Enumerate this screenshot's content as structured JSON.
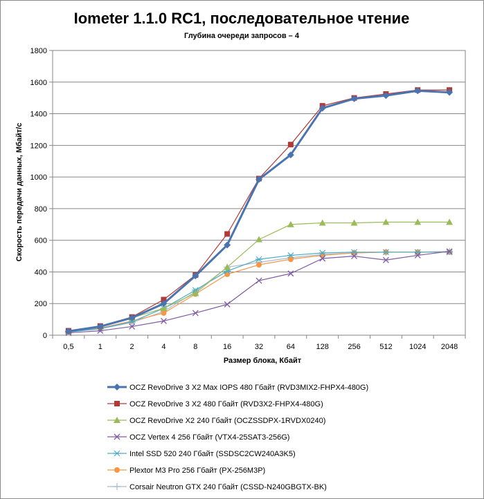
{
  "chart_data": {
    "type": "line",
    "title": "Iometer 1.1.0 RC1, последовательное чтение",
    "subtitle": "Глубина очереди запросов – 4",
    "xlabel": "Размер блока, Кбайт",
    "ylabel": "Скорость передачи данных, Мбайт/с",
    "categories": [
      "0,5",
      "1",
      "2",
      "4",
      "8",
      "16",
      "32",
      "64",
      "128",
      "256",
      "512",
      "1024",
      "2048"
    ],
    "ylim": [
      0,
      1800
    ],
    "yticks": [
      "0",
      "200",
      "400",
      "600",
      "800",
      "1000",
      "1200",
      "1400",
      "1600",
      "1800"
    ],
    "grid": "horizontal",
    "legend_position": "bottom",
    "series": [
      {
        "name": "OCZ RevoDrive 3 X2 Max IOPS 480 Гбайт (RVD3MIX2-FHPX4-480G)",
        "color": "#4a74b0",
        "marker": "diamond",
        "values": [
          25,
          55,
          110,
          200,
          375,
          570,
          985,
          1140,
          1435,
          1495,
          1515,
          1545,
          1535
        ]
      },
      {
        "name": "OCZ RevoDrive 3 X2 480 Гбайт (RVD3X2-FHPX4-480G)",
        "color": "#b03a38",
        "marker": "square",
        "values": [
          28,
          58,
          115,
          225,
          380,
          640,
          990,
          1205,
          1450,
          1500,
          1525,
          1550,
          1550
        ]
      },
      {
        "name": "OCZ RevoDrive X2 240 Гбайт (OCZSSDPX-1RVDX0240)",
        "color": "#9bbb59",
        "marker": "triangle",
        "values": [
          25,
          55,
          110,
          170,
          265,
          430,
          605,
          700,
          710,
          710,
          715,
          715,
          715
        ]
      },
      {
        "name": "OCZ Vertex  4 256 Гбайт (VTX4-25SAT3-256G)",
        "color": "#7f5aa2",
        "marker": "x",
        "values": [
          15,
          28,
          55,
          90,
          140,
          195,
          345,
          390,
          485,
          500,
          475,
          505,
          530
        ]
      },
      {
        "name": "Intel SSD 520 240 Гбайт (SSDSC2CW240A3K5)",
        "color": "#4bacc6",
        "marker": "asterisk",
        "values": [
          20,
          42,
          85,
          170,
          285,
          405,
          480,
          505,
          520,
          525,
          525,
          525,
          525
        ]
      },
      {
        "name": "Plextor M3 Pro 256 Гбайт (PX-256M3P)",
        "color": "#f79646",
        "marker": "circle",
        "values": [
          22,
          45,
          90,
          140,
          260,
          385,
          445,
          480,
          505,
          520,
          525,
          525,
          525
        ]
      },
      {
        "name": "Corsair Neutron GTX 240 Гбайт (CSSD-N240GBGTX-BK)",
        "color": "#a9b9cf",
        "marker": "plus",
        "values": [
          20,
          40,
          80,
          150,
          275,
          430,
          460,
          490,
          510,
          520,
          525,
          525,
          530
        ]
      }
    ]
  }
}
